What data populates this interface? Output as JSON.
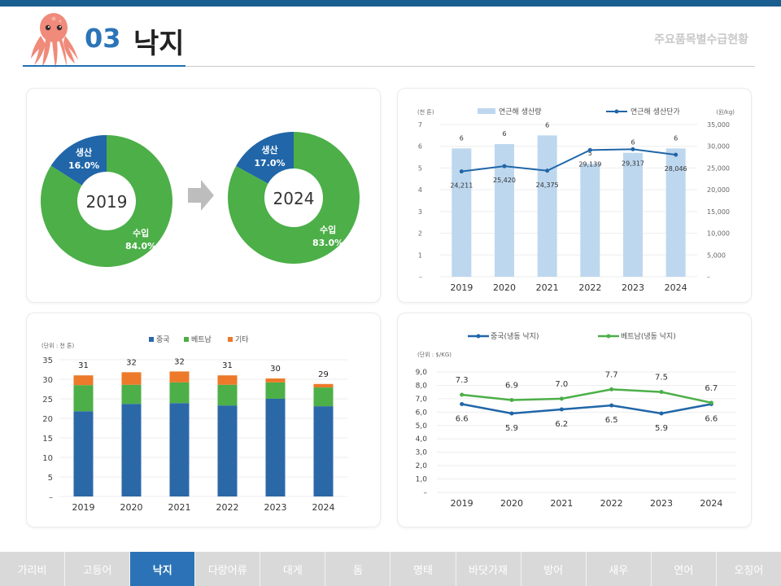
{
  "header": {
    "number": "03",
    "title": "낙지",
    "subtitle": "주요품목별수급현황"
  },
  "nav": {
    "items": [
      "가리비",
      "고등어",
      "낙지",
      "다랑어류",
      "대게",
      "돔",
      "명태",
      "바닷가재",
      "방어",
      "새우",
      "연어",
      "오징어"
    ],
    "active_index": 2
  },
  "colors": {
    "production": "#2066a8",
    "import": "#4caf48",
    "china": "#2b68a8",
    "vietnam": "#4caf48",
    "other": "#ec7a2a",
    "bar_light": "#bdd7ee"
  },
  "icons": {
    "octopus": "octopus-icon",
    "arrow": "arrow-right-icon"
  },
  "chart_data": [
    {
      "type": "pie",
      "title": "2019",
      "slices": [
        {
          "label": "생산",
          "value": 16.0,
          "value_label": "16.0%"
        },
        {
          "label": "수입",
          "value": 84.0,
          "value_label": "84.0%"
        }
      ]
    },
    {
      "type": "pie",
      "title": "2024",
      "slices": [
        {
          "label": "생산",
          "value": 17.0,
          "value_label": "17.0%"
        },
        {
          "label": "수입",
          "value": 83.0,
          "value_label": "83.0%"
        }
      ]
    },
    {
      "type": "bar",
      "categories": [
        "2019",
        "2020",
        "2021",
        "2022",
        "2023",
        "2024"
      ],
      "left_unit": "(천 톤)",
      "right_unit": "(원/kg)",
      "left_ticks": [
        "–",
        "1",
        "2",
        "3",
        "4",
        "5",
        "6",
        "7"
      ],
      "right_ticks": [
        "–",
        "5,000",
        "10,000",
        "15,000",
        "20,000",
        "25,000",
        "30,000",
        "35,000"
      ],
      "ylim": [
        0,
        7
      ],
      "y2lim": [
        0,
        35000
      ],
      "series": [
        {
          "name": "연근해 생산량",
          "kind": "bar",
          "values": [
            5.9,
            6.1,
            6.5,
            5.2,
            5.7,
            5.9
          ],
          "labels": [
            "6",
            "6",
            "6",
            "5",
            "6",
            "6"
          ]
        },
        {
          "name": "연근해 생산단가",
          "kind": "line",
          "values": [
            24211,
            25420,
            24375,
            29139,
            29317,
            28046
          ],
          "labels": [
            "24,211",
            "25,420",
            "24,375",
            "29,139",
            "29,317",
            "28,046"
          ]
        }
      ]
    },
    {
      "type": "bar",
      "stacked": true,
      "categories": [
        "2019",
        "2020",
        "2021",
        "2022",
        "2023",
        "2024"
      ],
      "unit": "(단위 : 천 톤)",
      "ylim": [
        0,
        35
      ],
      "yticks": [
        "–",
        "5",
        "10",
        "15",
        "20",
        "25",
        "30",
        "35"
      ],
      "totals": [
        "31",
        "32",
        "32",
        "31",
        "30",
        "29"
      ],
      "series": [
        {
          "name": "중국",
          "values": [
            21.8,
            23.7,
            23.9,
            23.3,
            25.0,
            23.1
          ]
        },
        {
          "name": "베트남",
          "values": [
            6.7,
            4.9,
            5.3,
            5.3,
            4.2,
            4.8
          ]
        },
        {
          "name": "기타",
          "values": [
            2.5,
            3.2,
            2.8,
            2.4,
            1.0,
            0.9
          ]
        }
      ]
    },
    {
      "type": "line",
      "categories": [
        "2019",
        "2020",
        "2021",
        "2022",
        "2023",
        "2024"
      ],
      "unit": "(단위 : $/KG)",
      "ylim": [
        0,
        9
      ],
      "yticks": [
        "–",
        "1,0",
        "2,0",
        "3,0",
        "4,0",
        "5,0",
        "6,0",
        "7,0",
        "8,0",
        "9,0"
      ],
      "series": [
        {
          "name": "중국(냉동 낙지)",
          "values": [
            6.6,
            5.9,
            6.2,
            6.5,
            5.9,
            6.6
          ],
          "labels": [
            "6.6",
            "5.9",
            "6.2",
            "6.5",
            "5.9",
            "6.6"
          ]
        },
        {
          "name": "베트남(냉동 낙지)",
          "values": [
            7.3,
            6.9,
            7.0,
            7.7,
            7.5,
            6.7
          ],
          "labels": [
            "7.3",
            "6.9",
            "7.0",
            "7.7",
            "7.5",
            "6.7"
          ]
        }
      ]
    }
  ]
}
